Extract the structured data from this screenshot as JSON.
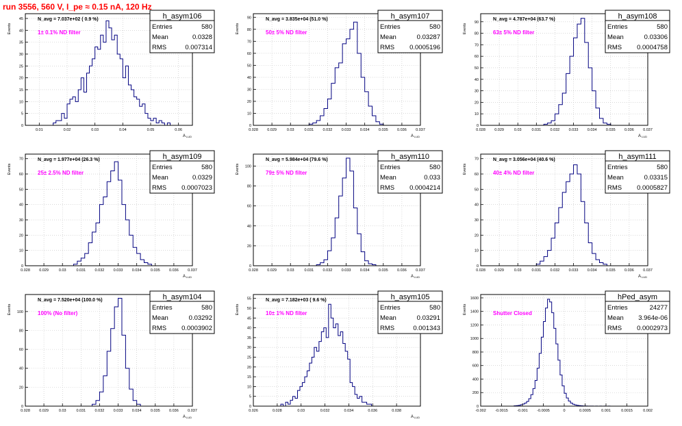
{
  "page_title": "run 3556,   560 V, I_pe ≈ 0.15 nA, 120 Hz",
  "colors": {
    "title": "#ff0000",
    "annotation": "#ff00ff",
    "histogram": "#000080",
    "grid": "#c0c0c0",
    "frame": "#000000"
  },
  "stat_labels": {
    "entries": "Entries",
    "mean": "Mean",
    "rms": "RMS"
  },
  "y_axis_label": "Events",
  "chart_data": [
    {
      "type": "histogram",
      "name": "h_asym106",
      "navg": "N_avg = 7.037e+02 ( 0.9 %)",
      "annotation": "1± 0.1% ND filter",
      "stats": {
        "entries": "580",
        "mean": "0.0328",
        "rms": "0.007314"
      },
      "xlabel": "A_LUD",
      "ylabel": "Events",
      "xlim": [
        0.005,
        0.065
      ],
      "ylim": [
        0,
        47
      ],
      "xticks": [
        0.01,
        0.02,
        0.03,
        0.04,
        0.05,
        0.06
      ],
      "xtick_labels": [
        "0.01",
        "0.02",
        "0.03",
        "0.04",
        "0.05",
        "0.06"
      ],
      "yticks": [
        0,
        5,
        10,
        15,
        20,
        25,
        30,
        35,
        40,
        45
      ],
      "ytick_labels": [
        "0",
        "5",
        "10",
        "15",
        "20",
        "25",
        "30",
        "35",
        "40",
        "45"
      ],
      "bin_start": 0.015,
      "bin_width": 0.001,
      "counts": [
        1,
        2,
        2,
        5,
        3,
        9,
        11,
        12,
        10,
        15,
        20,
        14,
        22,
        25,
        28,
        33,
        32,
        38,
        35,
        44,
        41,
        36,
        38,
        30,
        28,
        20,
        25,
        17,
        15,
        12,
        11,
        8,
        9,
        5,
        3,
        2,
        3,
        1,
        2,
        1,
        0,
        1
      ]
    },
    {
      "type": "histogram",
      "name": "h_asym107",
      "navg": "N_avg = 3.835e+04 (51.0 %)",
      "annotation": "50± 5% ND filter",
      "stats": {
        "entries": "580",
        "mean": "0.03287",
        "rms": "0.0005196"
      },
      "xlabel": "A_LUD",
      "ylabel": "Events",
      "xlim": [
        0.028,
        0.037
      ],
      "ylim": [
        0,
        93
      ],
      "xticks": [
        0.028,
        0.029,
        0.03,
        0.031,
        0.032,
        0.033,
        0.034,
        0.035,
        0.036,
        0.037
      ],
      "xtick_labels": [
        "0.028",
        "0.029",
        "0.03",
        "0.031",
        "0.032",
        "0.033",
        "0.034",
        "0.035",
        "0.036",
        "0.037"
      ],
      "yticks": [
        0,
        10,
        20,
        30,
        40,
        50,
        60,
        70,
        80,
        90
      ],
      "ytick_labels": [
        "0",
        "10",
        "20",
        "30",
        "40",
        "50",
        "60",
        "70",
        "80",
        "90"
      ],
      "bin_start": 0.031,
      "bin_width": 0.0002,
      "counts": [
        1,
        2,
        4,
        8,
        14,
        22,
        35,
        48,
        52,
        68,
        72,
        80,
        86,
        60,
        40,
        28,
        16,
        8,
        3,
        1
      ]
    },
    {
      "type": "histogram",
      "name": "h_asym108",
      "navg": "N_avg = 4.787e+04 (63.7 %)",
      "annotation": "63± 5% ND filter",
      "stats": {
        "entries": "580",
        "mean": "0.03306",
        "rms": "0.0004758"
      },
      "xlabel": "A_LUD",
      "ylabel": "Events",
      "xlim": [
        0.028,
        0.037
      ],
      "ylim": [
        0,
        97
      ],
      "xticks": [
        0.028,
        0.029,
        0.03,
        0.031,
        0.032,
        0.033,
        0.034,
        0.035,
        0.036,
        0.037
      ],
      "xtick_labels": [
        "0.028",
        "0.029",
        "0.03",
        "0.031",
        "0.032",
        "0.033",
        "0.034",
        "0.035",
        "0.036",
        "0.037"
      ],
      "yticks": [
        0,
        10,
        20,
        30,
        40,
        50,
        60,
        70,
        80,
        90
      ],
      "ytick_labels": [
        "0",
        "10",
        "20",
        "30",
        "40",
        "50",
        "60",
        "70",
        "80",
        "90"
      ],
      "bin_start": 0.0314,
      "bin_width": 0.0002,
      "counts": [
        1,
        2,
        4,
        10,
        18,
        28,
        45,
        60,
        76,
        88,
        93,
        72,
        50,
        30,
        15,
        6,
        2,
        1
      ]
    },
    {
      "type": "histogram",
      "name": "h_asym109",
      "navg": "N_avg = 1.977e+04 (26.3 %)",
      "annotation": "25± 2.5% ND filter",
      "stats": {
        "entries": "580",
        "mean": "0.0329",
        "rms": "0.0007023"
      },
      "xlabel": "A_LUD",
      "ylabel": "Events",
      "xlim": [
        0.028,
        0.037
      ],
      "ylim": [
        0,
        73
      ],
      "xticks": [
        0.028,
        0.029,
        0.03,
        0.031,
        0.032,
        0.033,
        0.034,
        0.035,
        0.036,
        0.037
      ],
      "xtick_labels": [
        "0.028",
        "0.029",
        "0.03",
        "0.031",
        "0.032",
        "0.033",
        "0.034",
        "0.035",
        "0.036",
        "0.037"
      ],
      "yticks": [
        0,
        10,
        20,
        30,
        40,
        50,
        60,
        70
      ],
      "ytick_labels": [
        "0",
        "10",
        "20",
        "30",
        "40",
        "50",
        "60",
        "70"
      ],
      "bin_start": 0.0306,
      "bin_width": 0.0002,
      "counts": [
        1,
        3,
        5,
        8,
        15,
        22,
        28,
        40,
        45,
        55,
        62,
        68,
        56,
        40,
        30,
        20,
        12,
        8,
        4,
        2,
        1
      ]
    },
    {
      "type": "histogram",
      "name": "h_asym110",
      "navg": "N_avg = 5.984e+04 (79.6 %)",
      "annotation": "79± 5% ND filter",
      "stats": {
        "entries": "580",
        "mean": "0.033",
        "rms": "0.0004214"
      },
      "xlabel": "A_LUD",
      "ylabel": "Events",
      "xlim": [
        0.028,
        0.037
      ],
      "ylim": [
        0,
        112
      ],
      "xticks": [
        0.028,
        0.029,
        0.03,
        0.031,
        0.032,
        0.033,
        0.034,
        0.035,
        0.036,
        0.037
      ],
      "xtick_labels": [
        "0.028",
        "0.029",
        "0.03",
        "0.031",
        "0.032",
        "0.033",
        "0.034",
        "0.035",
        "0.036",
        "0.037"
      ],
      "yticks": [
        0,
        20,
        40,
        60,
        80,
        100
      ],
      "ytick_labels": [
        "0",
        "20",
        "40",
        "60",
        "80",
        "100"
      ],
      "bin_start": 0.0314,
      "bin_width": 0.0002,
      "counts": [
        1,
        3,
        6,
        15,
        28,
        48,
        70,
        88,
        108,
        95,
        58,
        32,
        14,
        5,
        2,
        1
      ]
    },
    {
      "type": "histogram",
      "name": "h_asym111",
      "navg": "N_avg = 3.056e+04 (40.6 %)",
      "annotation": "40± 4% ND filter",
      "stats": {
        "entries": "580",
        "mean": "0.03315",
        "rms": "0.0005827"
      },
      "xlabel": "A_LUD",
      "ylabel": "Events",
      "xlim": [
        0.028,
        0.037
      ],
      "ylim": [
        0,
        73
      ],
      "xticks": [
        0.028,
        0.029,
        0.03,
        0.031,
        0.032,
        0.033,
        0.034,
        0.035,
        0.036,
        0.037
      ],
      "xtick_labels": [
        "0.028",
        "0.029",
        "0.03",
        "0.031",
        "0.032",
        "0.033",
        "0.034",
        "0.035",
        "0.036",
        "0.037"
      ],
      "yticks": [
        0,
        10,
        20,
        30,
        40,
        50,
        60,
        70
      ],
      "ytick_labels": [
        "0",
        "10",
        "20",
        "30",
        "40",
        "50",
        "60",
        "70"
      ],
      "bin_start": 0.031,
      "bin_width": 0.0002,
      "counts": [
        1,
        3,
        6,
        10,
        18,
        28,
        38,
        48,
        55,
        60,
        66,
        60,
        42,
        28,
        15,
        8,
        4,
        2,
        1
      ]
    },
    {
      "type": "histogram",
      "name": "h_asym104",
      "navg": "N_avg = 7.520e+04 (100.0 %)",
      "annotation": "100% (No filter)",
      "stats": {
        "entries": "580",
        "mean": "0.03292",
        "rms": "0.0003902"
      },
      "xlabel": "A_LUD",
      "ylabel": "Events",
      "xlim": [
        0.028,
        0.037
      ],
      "ylim": [
        0,
        118
      ],
      "xticks": [
        0.028,
        0.029,
        0.03,
        0.031,
        0.032,
        0.033,
        0.034,
        0.035,
        0.036,
        0.037
      ],
      "xtick_labels": [
        "0.028",
        "0.029",
        "0.03",
        "0.031",
        "0.032",
        "0.033",
        "0.034",
        "0.035",
        "0.036",
        "0.037"
      ],
      "yticks": [
        0,
        20,
        40,
        60,
        80,
        100
      ],
      "ytick_labels": [
        "0",
        "20",
        "40",
        "60",
        "80",
        "100"
      ],
      "bin_start": 0.0316,
      "bin_width": 0.0002,
      "counts": [
        2,
        6,
        15,
        32,
        58,
        82,
        105,
        114,
        75,
        40,
        18,
        6,
        2
      ]
    },
    {
      "type": "histogram",
      "name": "h_asym105",
      "navg": "N_avg = 7.182e+03 ( 9.6 %)",
      "annotation": "10± 1% ND filter",
      "stats": {
        "entries": "580",
        "mean": "0.03291",
        "rms": "0.001343"
      },
      "xlabel": "A_LUD",
      "ylabel": "Events",
      "xlim": [
        0.026,
        0.04
      ],
      "ylim": [
        0,
        57
      ],
      "xticks": [
        0.026,
        0.028,
        0.03,
        0.032,
        0.034,
        0.036,
        0.038
      ],
      "xtick_labels": [
        "0.026",
        "0.028",
        "0.03",
        "0.032",
        "0.034",
        "0.036",
        "0.038"
      ],
      "yticks": [
        0,
        5,
        10,
        15,
        20,
        25,
        30,
        35,
        40,
        45,
        50,
        55
      ],
      "ytick_labels": [
        "0",
        "5",
        "10",
        "15",
        "20",
        "25",
        "30",
        "35",
        "40",
        "45",
        "50",
        "55"
      ],
      "bin_start": 0.0283,
      "bin_width": 0.0002,
      "counts": [
        1,
        0,
        2,
        1,
        3,
        5,
        4,
        8,
        10,
        12,
        15,
        18,
        22,
        25,
        30,
        28,
        33,
        38,
        40,
        35,
        52,
        45,
        40,
        42,
        36,
        38,
        32,
        28,
        24,
        12,
        10,
        6,
        4,
        5,
        2,
        2,
        1,
        1
      ]
    },
    {
      "type": "histogram",
      "name": "hPed_asym",
      "navg": "",
      "annotation": "Shutter Closed",
      "stats": {
        "entries": "24277",
        "mean": "3.964e-06",
        "rms": "0.0002973"
      },
      "xlabel": "",
      "ylabel": "Events",
      "xlim": [
        -0.002,
        0.002
      ],
      "ylim": [
        0,
        1650
      ],
      "xticks": [
        -0.002,
        -0.0015,
        -0.001,
        -0.0005,
        0,
        0.0005,
        0.001,
        0.0015,
        0.002
      ],
      "xtick_labels": [
        "-0.002",
        "-0.0015",
        "-0.001",
        "-0.0005",
        "0",
        "0.0005",
        "0.001",
        "0.0015",
        "0.002"
      ],
      "yticks": [
        0,
        200,
        400,
        600,
        800,
        1000,
        1200,
        1400,
        1600
      ],
      "ytick_labels": [
        "0",
        "200",
        "400",
        "600",
        "800",
        "1000",
        "1200",
        "1400",
        "1600"
      ],
      "bin_start": -0.0012,
      "bin_width": 5e-05,
      "counts": [
        5,
        8,
        12,
        20,
        30,
        45,
        70,
        110,
        170,
        260,
        380,
        560,
        780,
        1020,
        1250,
        1450,
        1580,
        1540,
        1380,
        1150,
        920,
        680,
        460,
        300,
        190,
        120,
        75,
        45,
        28,
        18,
        12,
        8,
        5,
        3,
        2,
        1,
        1,
        1,
        0,
        1,
        0,
        1,
        0,
        1,
        0,
        1,
        0,
        0
      ]
    }
  ]
}
